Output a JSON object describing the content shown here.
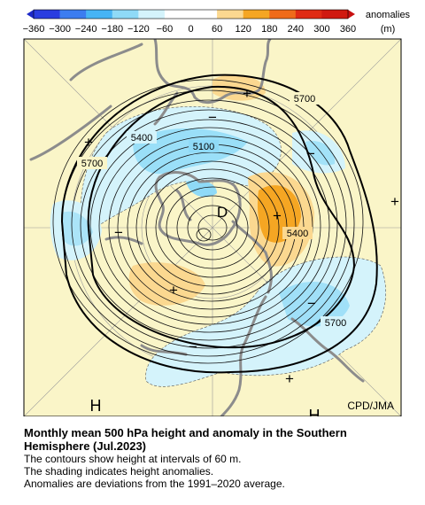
{
  "colorbar": {
    "unit_label": "anomalies",
    "unit": "(m)",
    "ticks": [
      "−360",
      "−300",
      "−240",
      "−180",
      "−120",
      "−60",
      "0",
      "60",
      "120",
      "180",
      "240",
      "300",
      "360"
    ],
    "colors": [
      "#2a3de0",
      "#3c7df0",
      "#47b4f5",
      "#8fdaf7",
      "#d4f3fb",
      "#fbf8c4",
      "#fbd890",
      "#f5a623",
      "#ef6b1a",
      "#e02b14"
    ]
  },
  "map": {
    "land_color": "#faf5c8",
    "ocean_neutral": "#faf5c8",
    "coastline_color": "#8c8c8c",
    "contour_interval_m": 60,
    "contour_labels": [
      "5700",
      "5400",
      "5100",
      "5400",
      "5700",
      "5700"
    ],
    "markers": {
      "D": "D",
      "H1": "H",
      "H2": "H",
      "plus": "+",
      "minus": "−"
    },
    "credit": "CPD/JMA"
  },
  "caption": {
    "title_line1": "Monthly mean 500 hPa height and anomaly in the Southern",
    "title_line2": "Hemisphere (Jul.2023)",
    "line1": "The contours show height at intervals of 60 m.",
    "line2": "The shading indicates height anomalies.",
    "line3": "Anomalies are deviations from the 1991–2020 average."
  }
}
